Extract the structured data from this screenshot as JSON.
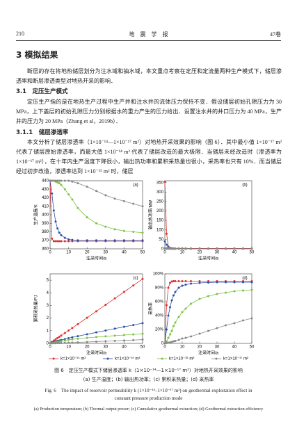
{
  "header": {
    "page": "210",
    "journal": "地　震　学　报",
    "volume": "47卷"
  },
  "section": "3 模拟结果",
  "paragraph_1": "断层的存在将地热储层划分为注水域和抽水域，本文重点考察在定压和定流量两种生产模式下，储层渗透率和断层渗透类型对地热开采的影响．",
  "subsection": "3.1　定压生产模式",
  "paragraph_2": "定压生产指的是在地热生产过程中生产井和注水井的流体压力保持不变．假设储层初始孔隙压力为 30 MPa，上下盖层的初始孔隙压力分别根据水的重力产生的压力给出．设置注水井的井口压力为 40 MPa，生产井的压力为 20 MPa（Zhang et al，2019b）．",
  "subsubsection": "3.1.1　储层渗透率",
  "paragraph_3": "本文分析了储层渗透率（1×10⁻¹⁴—1×10⁻¹⁷ m²）对地热开采效果的影响（图 6）．其中最小值 1×10⁻¹⁷ m² 代表了储层原始渗透率，而最大值 1×10⁻¹⁴ m² 代表了储层改造的最大极限．当储层未经改造时（渗透率为 1×10⁻¹⁷ m²），在十年内生产温度下降很小，输出热功率和累积采热量也很小，采热率也只有 10%．而当储层经过初步改造，渗透率达到 1×10⁻¹⁵ m² 时，储层",
  "caption": {
    "cn": "图 6　定压生产模式下储层渗透率 k（1×10⁻¹⁴—1×10⁻¹⁷ m²）对地热开采效果的影响",
    "cn_sub": "(a) 生产温度；(b) 输出热功率；(c) 累积采热量；(d) 采热率",
    "en": "Fig. 6　The impact of reservoir permeability k (1×10⁻¹⁴–1×10⁻¹⁷ m²) on geothermal exploitation effect in constant pressure production mode",
    "en_sub": "(a) Production temperature; (b) Thermal output power; (c) Cumulative geothermal extraction; (d) Geothermal extraction efficiency"
  },
  "chart_data": [
    {
      "type": "line",
      "panel": "(a)",
      "x_label": "注采时间/a",
      "y_label": "生产温度/K",
      "xlim": [
        0,
        50
      ],
      "xticks": [
        0,
        10,
        20,
        30,
        40,
        50
      ],
      "ylim": [
        360,
        440
      ],
      "yticks": [
        360,
        370,
        380,
        390,
        400,
        410,
        420,
        430,
        440
      ],
      "legend": "bottom",
      "x": [
        0,
        1,
        2,
        3,
        4,
        5,
        6,
        8,
        10,
        12,
        15,
        20,
        25,
        30,
        35,
        40,
        45,
        50
      ],
      "series": [
        {
          "name": "k=1×10⁻¹⁴ m²",
          "color": "#e03030",
          "values": [
            440,
            372,
            369,
            369,
            369,
            369,
            369,
            369,
            369,
            369,
            369,
            369,
            369,
            369,
            369,
            369,
            369,
            369
          ]
        },
        {
          "name": "k=1×10⁻¹⁵ m²",
          "color": "#2b4fa8",
          "values": [
            440,
            425,
            405,
            392,
            384,
            379,
            376,
            373,
            371,
            370.5,
            370,
            370,
            370,
            370,
            370,
            370,
            370,
            370
          ]
        },
        {
          "name": "k=1×10⁻¹⁶ m²",
          "color": "#7cc242",
          "values": [
            440,
            440,
            440,
            439,
            438,
            437,
            435,
            430,
            424,
            418,
            408,
            397,
            390,
            386,
            383,
            381,
            380,
            379
          ]
        },
        {
          "name": "k=1×10⁻¹⁷ m²",
          "color": "#888888",
          "values": [
            440,
            440,
            440,
            440,
            440,
            440,
            440,
            440,
            440,
            439,
            437,
            433,
            428,
            423,
            419,
            416,
            413,
            410
          ]
        }
      ]
    },
    {
      "type": "line",
      "panel": "(b)",
      "x_label": "注采时间/a",
      "y_label": "输出热功率/MW",
      "xlim": [
        0,
        50
      ],
      "xticks": [
        0,
        10,
        20,
        30,
        40,
        50
      ],
      "ylim": [
        0,
        360
      ],
      "yticks": [
        0,
        50,
        100,
        150,
        200,
        250,
        300,
        350
      ],
      "x": [
        0,
        1,
        2,
        3,
        4,
        5,
        6,
        8,
        10,
        12,
        15,
        20,
        25,
        30,
        35,
        40,
        45,
        50
      ],
      "series": [
        {
          "color": "#e03030",
          "values": [
            355,
            80,
            12,
            4,
            3,
            2.5,
            2.5,
            2.5,
            2.5,
            2.5,
            2,
            2,
            2,
            2,
            2,
            2,
            2,
            2
          ]
        },
        {
          "color": "#2b4fa8",
          "values": [
            40,
            22,
            10,
            5,
            3,
            2,
            1.5,
            1,
            1,
            1,
            1,
            1,
            1,
            1,
            1,
            1,
            1,
            1
          ]
        },
        {
          "color": "#7cc242",
          "values": [
            5,
            4,
            3,
            2.5,
            2,
            1.5,
            1.2,
            1,
            0.8,
            0.7,
            0.6,
            0.5,
            0.5,
            0.5,
            0.5,
            0.5,
            0.5,
            0.5
          ]
        },
        {
          "color": "#888888",
          "values": [
            0.5,
            0.4,
            0.3,
            0.3,
            0.2,
            0.2,
            0.2,
            0.2,
            0.2,
            0.2,
            0.2,
            0.2,
            0.2,
            0.2,
            0.2,
            0.2,
            0.2,
            0.2
          ]
        }
      ]
    },
    {
      "type": "line",
      "panel": "(c)",
      "x_label": "注采时间/a",
      "y_label": "累积采热量/PJ",
      "xlim": [
        0,
        50
      ],
      "xticks": [
        0,
        10,
        20,
        30,
        40,
        50
      ],
      "ylim": [
        0,
        5.5
      ],
      "yticks": [
        0,
        1,
        2,
        3,
        4,
        5
      ],
      "x": [
        0,
        1,
        2,
        3,
        4,
        5,
        6,
        8,
        10,
        12,
        15,
        20,
        25,
        30,
        35,
        40,
        45,
        50
      ],
      "series": [
        {
          "color": "#e03030",
          "values": [
            0,
            0.12,
            0.22,
            0.32,
            0.42,
            0.52,
            0.62,
            0.82,
            1.02,
            1.22,
            1.52,
            2.03,
            2.54,
            3.05,
            3.56,
            4.07,
            4.58,
            5.1
          ]
        },
        {
          "color": "#2b4fa8",
          "values": [
            0,
            0.06,
            0.11,
            0.15,
            0.19,
            0.23,
            0.27,
            0.34,
            0.41,
            0.48,
            0.57,
            0.72,
            0.87,
            1.02,
            1.17,
            1.31,
            1.45,
            1.6
          ]
        },
        {
          "color": "#7cc242",
          "values": [
            0,
            0.03,
            0.06,
            0.09,
            0.12,
            0.15,
            0.18,
            0.23,
            0.28,
            0.32,
            0.37,
            0.44,
            0.5,
            0.56,
            0.61,
            0.66,
            0.71,
            0.76
          ]
        },
        {
          "color": "#888888",
          "values": [
            0,
            0.005,
            0.01,
            0.015,
            0.02,
            0.025,
            0.03,
            0.04,
            0.05,
            0.06,
            0.08,
            0.11,
            0.14,
            0.17,
            0.2,
            0.23,
            0.26,
            0.3
          ]
        }
      ]
    },
    {
      "type": "line",
      "panel": "(d)",
      "x_label": "注采时间/a",
      "y_label": "采热率",
      "xlim": [
        0,
        50
      ],
      "xticks": [
        0,
        10,
        20,
        30,
        40,
        50
      ],
      "ylim": [
        0,
        100
      ],
      "yticks": [
        0,
        {
          "value": 20,
          "label": "20%"
        },
        {
          "value": 40,
          "label": "40%"
        },
        {
          "value": 60,
          "label": "60%"
        },
        {
          "value": 80,
          "label": "80%"
        },
        {
          "value": 100,
          "label": "100%"
        }
      ],
      "x": [
        0,
        1,
        2,
        3,
        4,
        5,
        6,
        8,
        10,
        12,
        15,
        20,
        25,
        30,
        35,
        40,
        45,
        50
      ],
      "series": [
        {
          "color": "#e03030",
          "values": [
            0,
            55,
            80,
            87,
            89,
            89.5,
            89.5,
            89.5,
            89.5,
            89.5,
            89.5,
            89.5,
            89.5,
            89.5,
            89.5,
            89.5,
            89.5,
            89.5
          ]
        },
        {
          "color": "#2b4fa8",
          "values": [
            0,
            20,
            40,
            52,
            62,
            69,
            74,
            80,
            83,
            84.5,
            86,
            87,
            87.5,
            88,
            88,
            88,
            88,
            88
          ]
        },
        {
          "color": "#7cc242",
          "values": [
            0,
            3,
            8,
            13,
            18,
            25,
            30,
            38,
            45,
            50,
            57,
            64,
            68,
            71,
            73,
            75,
            76,
            77
          ]
        },
        {
          "color": "#888888",
          "values": [
            0,
            0.5,
            1,
            1.5,
            2,
            3,
            3.5,
            5,
            7,
            8,
            10,
            14,
            18,
            22,
            26,
            29,
            33,
            36
          ]
        }
      ]
    }
  ]
}
